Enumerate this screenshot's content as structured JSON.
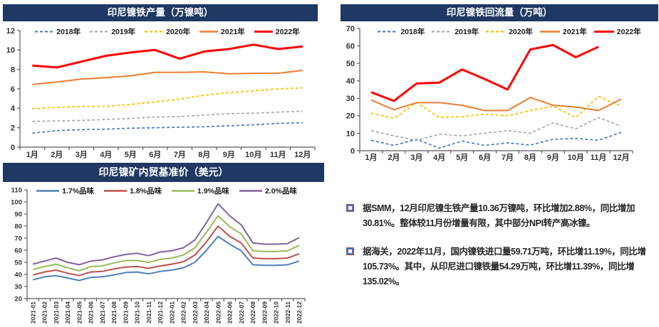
{
  "colors": {
    "titlebar_bg": "#1F3864",
    "titlebar_text": "#FFFFFF",
    "axis": "#595959",
    "axis_label": "#333333",
    "bullet_inner": "#4573C4",
    "bullet_outer": "#A1524A",
    "note_text": "#262626"
  },
  "chart_data": [
    {
      "type": "line",
      "title": "印尼镍铁产量（万镍吨）",
      "categories": [
        "1月",
        "2月",
        "3月",
        "4月",
        "5月",
        "6月",
        "7月",
        "8月",
        "9月",
        "10月",
        "11月",
        "12月"
      ],
      "ylim": [
        0,
        12
      ],
      "ytick": 2,
      "grid": false,
      "legend_position": "top",
      "series": [
        {
          "name": "2018年",
          "color": "#4472C4",
          "style": "dashed",
          "width": 1.6,
          "values": [
            1.45,
            1.7,
            1.8,
            1.85,
            1.95,
            2.0,
            2.05,
            2.1,
            2.2,
            2.3,
            2.45,
            2.5
          ]
        },
        {
          "name": "2019年",
          "color": "#A5A5A5",
          "style": "dashed",
          "width": 1.6,
          "values": [
            2.65,
            2.7,
            2.75,
            2.85,
            2.95,
            3.1,
            3.15,
            3.3,
            3.45,
            3.5,
            3.6,
            3.7
          ]
        },
        {
          "name": "2020年",
          "color": "#FFC000",
          "style": "dashed",
          "width": 1.8,
          "values": [
            3.95,
            4.1,
            4.2,
            4.2,
            4.4,
            4.65,
            4.95,
            5.35,
            5.6,
            5.8,
            6.0,
            6.1
          ]
        },
        {
          "name": "2021年",
          "color": "#ED7D31",
          "style": "solid",
          "width": 2,
          "values": [
            6.45,
            6.7,
            7.0,
            7.15,
            7.35,
            7.7,
            7.7,
            7.75,
            7.55,
            7.6,
            7.6,
            7.9
          ]
        },
        {
          "name": "2022年",
          "color": "#FF0000",
          "style": "solid",
          "width": 3,
          "values": [
            8.4,
            8.2,
            8.8,
            9.4,
            9.75,
            10.0,
            9.1,
            9.85,
            10.1,
            10.55,
            10.1,
            10.36
          ]
        }
      ]
    },
    {
      "type": "line",
      "title": "印尼镍铁回流量（万吨）",
      "categories": [
        "1月",
        "2月",
        "3月",
        "4月",
        "5月",
        "6月",
        "7月",
        "8月",
        "9月",
        "10月",
        "11月",
        "12月"
      ],
      "ylim": [
        0,
        70
      ],
      "ytick": 10,
      "grid": false,
      "legend_position": "top",
      "series": [
        {
          "name": "2018年",
          "color": "#4472C4",
          "style": "dashed",
          "width": 1.6,
          "values": [
            6,
            3,
            6.5,
            1.5,
            5.5,
            3,
            4.5,
            3.2,
            6.5,
            7,
            6,
            10.5
          ]
        },
        {
          "name": "2019年",
          "color": "#A5A5A5",
          "style": "dashed",
          "width": 1.6,
          "values": [
            11.5,
            8.5,
            6,
            9.5,
            8.5,
            10,
            11.5,
            10,
            16,
            12.5,
            19,
            14
          ]
        },
        {
          "name": "2020年",
          "color": "#FFC000",
          "style": "dashed",
          "width": 1.8,
          "values": [
            21.5,
            18.5,
            27.5,
            19,
            19.5,
            21,
            20,
            23,
            25.5,
            19,
            31,
            25.5
          ]
        },
        {
          "name": "2021年",
          "color": "#ED7D31",
          "style": "solid",
          "width": 2,
          "values": [
            29,
            23.5,
            27.5,
            27.5,
            26,
            23,
            23,
            30.5,
            26,
            25,
            23,
            29.5
          ]
        },
        {
          "name": "2022年",
          "color": "#FF0000",
          "style": "solid",
          "width": 3,
          "values": [
            33.5,
            28.5,
            38.5,
            39,
            46.5,
            41,
            35,
            58,
            60.5,
            53.5,
            59.5
          ]
        }
      ]
    },
    {
      "type": "line",
      "title": "印尼镍矿内贸基准价（美元）",
      "categories": [
        "2021-01",
        "2021-02",
        "2021-03",
        "2021-04",
        "2021-05",
        "2021-06",
        "2021-07",
        "2021-08",
        "2021-09",
        "2021-10",
        "2021-11",
        "2021-12",
        "2022-01",
        "2022-02",
        "2022-03",
        "2022-04",
        "2022-05",
        "2022-06",
        "2022-07",
        "2022-08",
        "2022-09",
        "2022-10",
        "2022-11",
        "2022-12"
      ],
      "ylim": [
        20,
        110
      ],
      "ytick": 10,
      "grid": false,
      "legend_position": "top",
      "series": [
        {
          "name": "1.7%品味",
          "color": "#4F81BD",
          "style": "solid",
          "width": 2,
          "values": [
            35.5,
            38,
            39,
            37,
            35,
            37.5,
            38,
            39.5,
            41.5,
            42,
            40.5,
            42.5,
            43.5,
            45.5,
            50,
            60,
            71.5,
            65,
            59.5,
            48,
            47.5,
            47.5,
            48,
            51
          ]
        },
        {
          "name": "1.8%品味",
          "color": "#C0504D",
          "style": "solid",
          "width": 2,
          "values": [
            39.5,
            42,
            43.5,
            41,
            39,
            42,
            42.5,
            44.5,
            46,
            46.5,
            45,
            47,
            48.5,
            50.5,
            56,
            67,
            80,
            71.5,
            66,
            53.5,
            53,
            53,
            53.5,
            57
          ]
        },
        {
          "name": "1.9%品味",
          "color": "#9BBB59",
          "style": "solid",
          "width": 2,
          "values": [
            44,
            46.5,
            48.5,
            45.5,
            43,
            46.5,
            47,
            49.5,
            51.5,
            51.5,
            50,
            52.5,
            53.5,
            56,
            62,
            75,
            88.5,
            79.5,
            73.5,
            59.5,
            59,
            59,
            59.5,
            64
          ]
        },
        {
          "name": "2.0%品味",
          "color": "#8064A2",
          "style": "solid",
          "width": 2,
          "values": [
            48.5,
            51,
            53.5,
            50,
            48,
            51,
            52,
            54.5,
            56.5,
            57.5,
            55.5,
            58.5,
            59.5,
            62,
            68.5,
            83,
            98.5,
            88.5,
            81,
            66,
            65,
            65,
            65.5,
            70.5
          ]
        }
      ]
    }
  ],
  "notes": {
    "bullets": [
      "据SMM，12月印尼镍生铁产量10.36万镍吨，环比增加2.88%，同比增加30.81%。整体较11月份增量有限，其中部分NPI转产高冰镍。",
      "据海关，2022年11月，国内镍铁进口量59.71万吨，环比增11.19%，同比增105.73%。其中，从印尼进口镍铁量54.29万吨，环比增11.39%，同比增135.02%。"
    ]
  }
}
